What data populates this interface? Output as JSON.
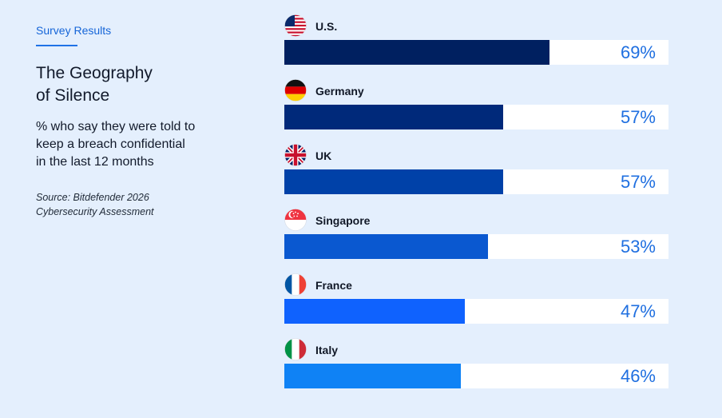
{
  "header": {
    "eyebrow": "Survey Results",
    "title_line1": "The Geography",
    "title_line2": "of Silence",
    "subtitle_line1": "% who say they were told to",
    "subtitle_line2": "keep a breach confidential",
    "subtitle_line3": "in the last 12 months",
    "source_line1": "Source: Bitdefender 2026",
    "source_line2": "Cybersecurity Assessment"
  },
  "chart_data": {
    "type": "bar",
    "orientation": "horizontal",
    "categories": [
      "U.S.",
      "Germany",
      "UK",
      "Singapore",
      "France",
      "Italy"
    ],
    "values": [
      69,
      57,
      57,
      53,
      47,
      46
    ],
    "value_labels": [
      "69%",
      "57%",
      "57%",
      "53%",
      "47%",
      "46%"
    ],
    "flag_icons": [
      "us-flag-icon",
      "germany-flag-icon",
      "uk-flag-icon",
      "singapore-flag-icon",
      "france-flag-icon",
      "italy-flag-icon"
    ],
    "bar_colors": [
      "#002060",
      "#00297a",
      "#0041a8",
      "#0a58d0",
      "#0f62fe",
      "#0f82f5"
    ],
    "xlim": [
      0,
      100
    ],
    "title": "The Geography of Silence",
    "xlabel": "",
    "ylabel": "",
    "grid": false
  },
  "colors": {
    "background": "#e4effd",
    "accent": "#1f6fe0",
    "track": "#ffffff"
  }
}
